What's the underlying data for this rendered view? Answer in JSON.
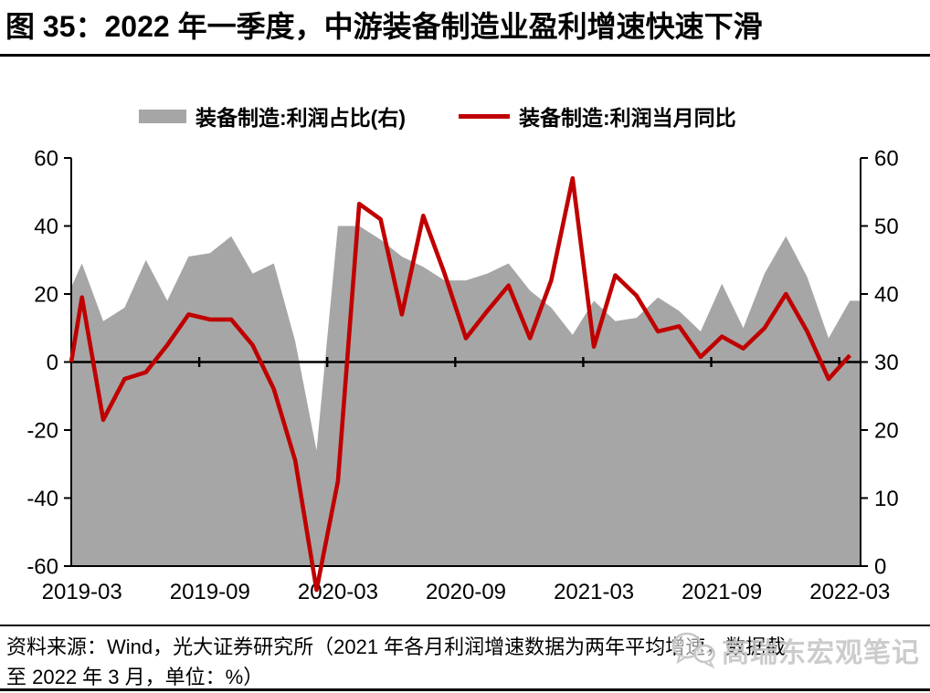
{
  "figure": {
    "title": "图 35：2022 年一季度，中游装备制造业盈利增速快速下滑"
  },
  "legend": [
    {
      "label": "装备制造:利润占比(右)",
      "type": "area",
      "color": "#A6A6A6"
    },
    {
      "label": "装备制造:利润当月同比",
      "type": "line",
      "color": "#C00000"
    }
  ],
  "source_note": {
    "line1": "资料来源：Wind，光大证券研究所（2021 年各月利润增速数据为两年平均增速，数据截",
    "line2": "至 2022 年 3 月，单位：%）"
  },
  "watermark": {
    "text": "高瑞东宏观笔记",
    "icon": "wechat-chat-bubbles"
  },
  "chart_data": {
    "type": "area+line combo",
    "title": "图 35：2022 年一季度，中游装备制造业盈利增速快速下滑",
    "x": [
      "2019-03",
      "2019-04",
      "2019-05",
      "2019-06",
      "2019-07",
      "2019-08",
      "2019-09",
      "2019-10",
      "2019-11",
      "2019-12",
      "2020-01",
      "2020-02",
      "2020-03",
      "2020-04",
      "2020-05",
      "2020-06",
      "2020-07",
      "2020-08",
      "2020-09",
      "2020-10",
      "2020-11",
      "2020-12",
      "2021-01",
      "2021-02",
      "2021-03",
      "2021-04",
      "2021-05",
      "2021-06",
      "2021-07",
      "2021-08",
      "2021-09",
      "2021-10",
      "2021-11",
      "2021-12",
      "2022-01",
      "2022-02",
      "2022-03"
    ],
    "x_tick_labels": [
      "2019-03",
      "2019-09",
      "2020-03",
      "2020-09",
      "2021-03",
      "2021-09",
      "2022-03"
    ],
    "series": [
      {
        "name": "装备制造:利润占比(右)",
        "type": "area",
        "axis": "right",
        "color": "#A6A6A6",
        "values": [
          44.5,
          36,
          38,
          45,
          39,
          45.5,
          46,
          48.5,
          43,
          44.5,
          33,
          17,
          50,
          50,
          48,
          45.5,
          44,
          42,
          42,
          43,
          44.5,
          40.5,
          38,
          34,
          39,
          36,
          36.5,
          39.5,
          37.5,
          34.5,
          41.5,
          35,
          43,
          48.5,
          42.5,
          33.5,
          39
        ]
      },
      {
        "name": "装备制造:利润当月同比",
        "type": "line",
        "axis": "left",
        "color": "#C00000",
        "values": [
          19,
          -17,
          -5,
          -3,
          5,
          14,
          12.5,
          12.5,
          5,
          -8,
          -29,
          -67,
          -35,
          46.5,
          42,
          14,
          43,
          26,
          7,
          15,
          22.5,
          7,
          24,
          54,
          4.5,
          25.5,
          19.5,
          9,
          10.5,
          1.5,
          7.5,
          4,
          10,
          20,
          9,
          -5,
          2
        ]
      }
    ],
    "left_edge": {
      "line": 0,
      "area": 41
    },
    "y_left": {
      "min": -60,
      "max": 60,
      "ticks": [
        60,
        40,
        20,
        0,
        -20,
        -40,
        -60
      ]
    },
    "y_right": {
      "min": 0,
      "max": 60,
      "ticks": [
        60,
        50,
        40,
        30,
        20,
        10,
        0
      ]
    },
    "grid": "none",
    "legend_position": "top",
    "unit": "%",
    "notes": "2020-02 line value plunges below the -60 axis floor (≈ -67, drawn past the axis); x ticks sit on the zero line every 6 months"
  }
}
